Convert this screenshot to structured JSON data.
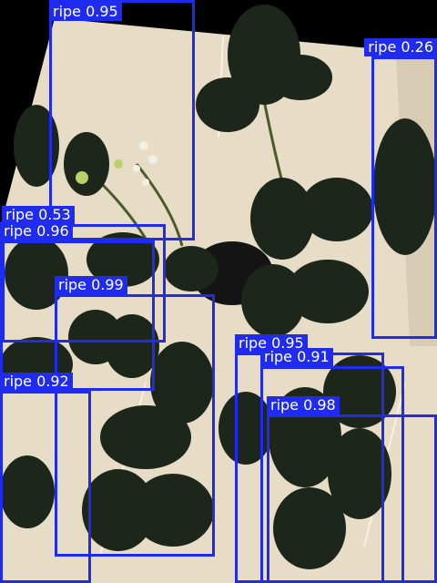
{
  "image": {
    "description_free": true
  },
  "colors": {
    "box": "#1f2cf0",
    "label_text": "#ffffff",
    "background": "#000000",
    "board": "#e8dcc4",
    "leaf": "#1c261b"
  },
  "detections": [
    {
      "label": "ripe 0.95"
    },
    {
      "label": "ripe 0.26"
    },
    {
      "label": "ripe 0.53"
    },
    {
      "label": "ripe 0.96"
    },
    {
      "label": "ripe 0.99"
    },
    {
      "label": "ripe 0.95"
    },
    {
      "label": "ripe 0.91"
    },
    {
      "label": "ripe 0.98"
    },
    {
      "label": "ripe 0.92"
    }
  ]
}
